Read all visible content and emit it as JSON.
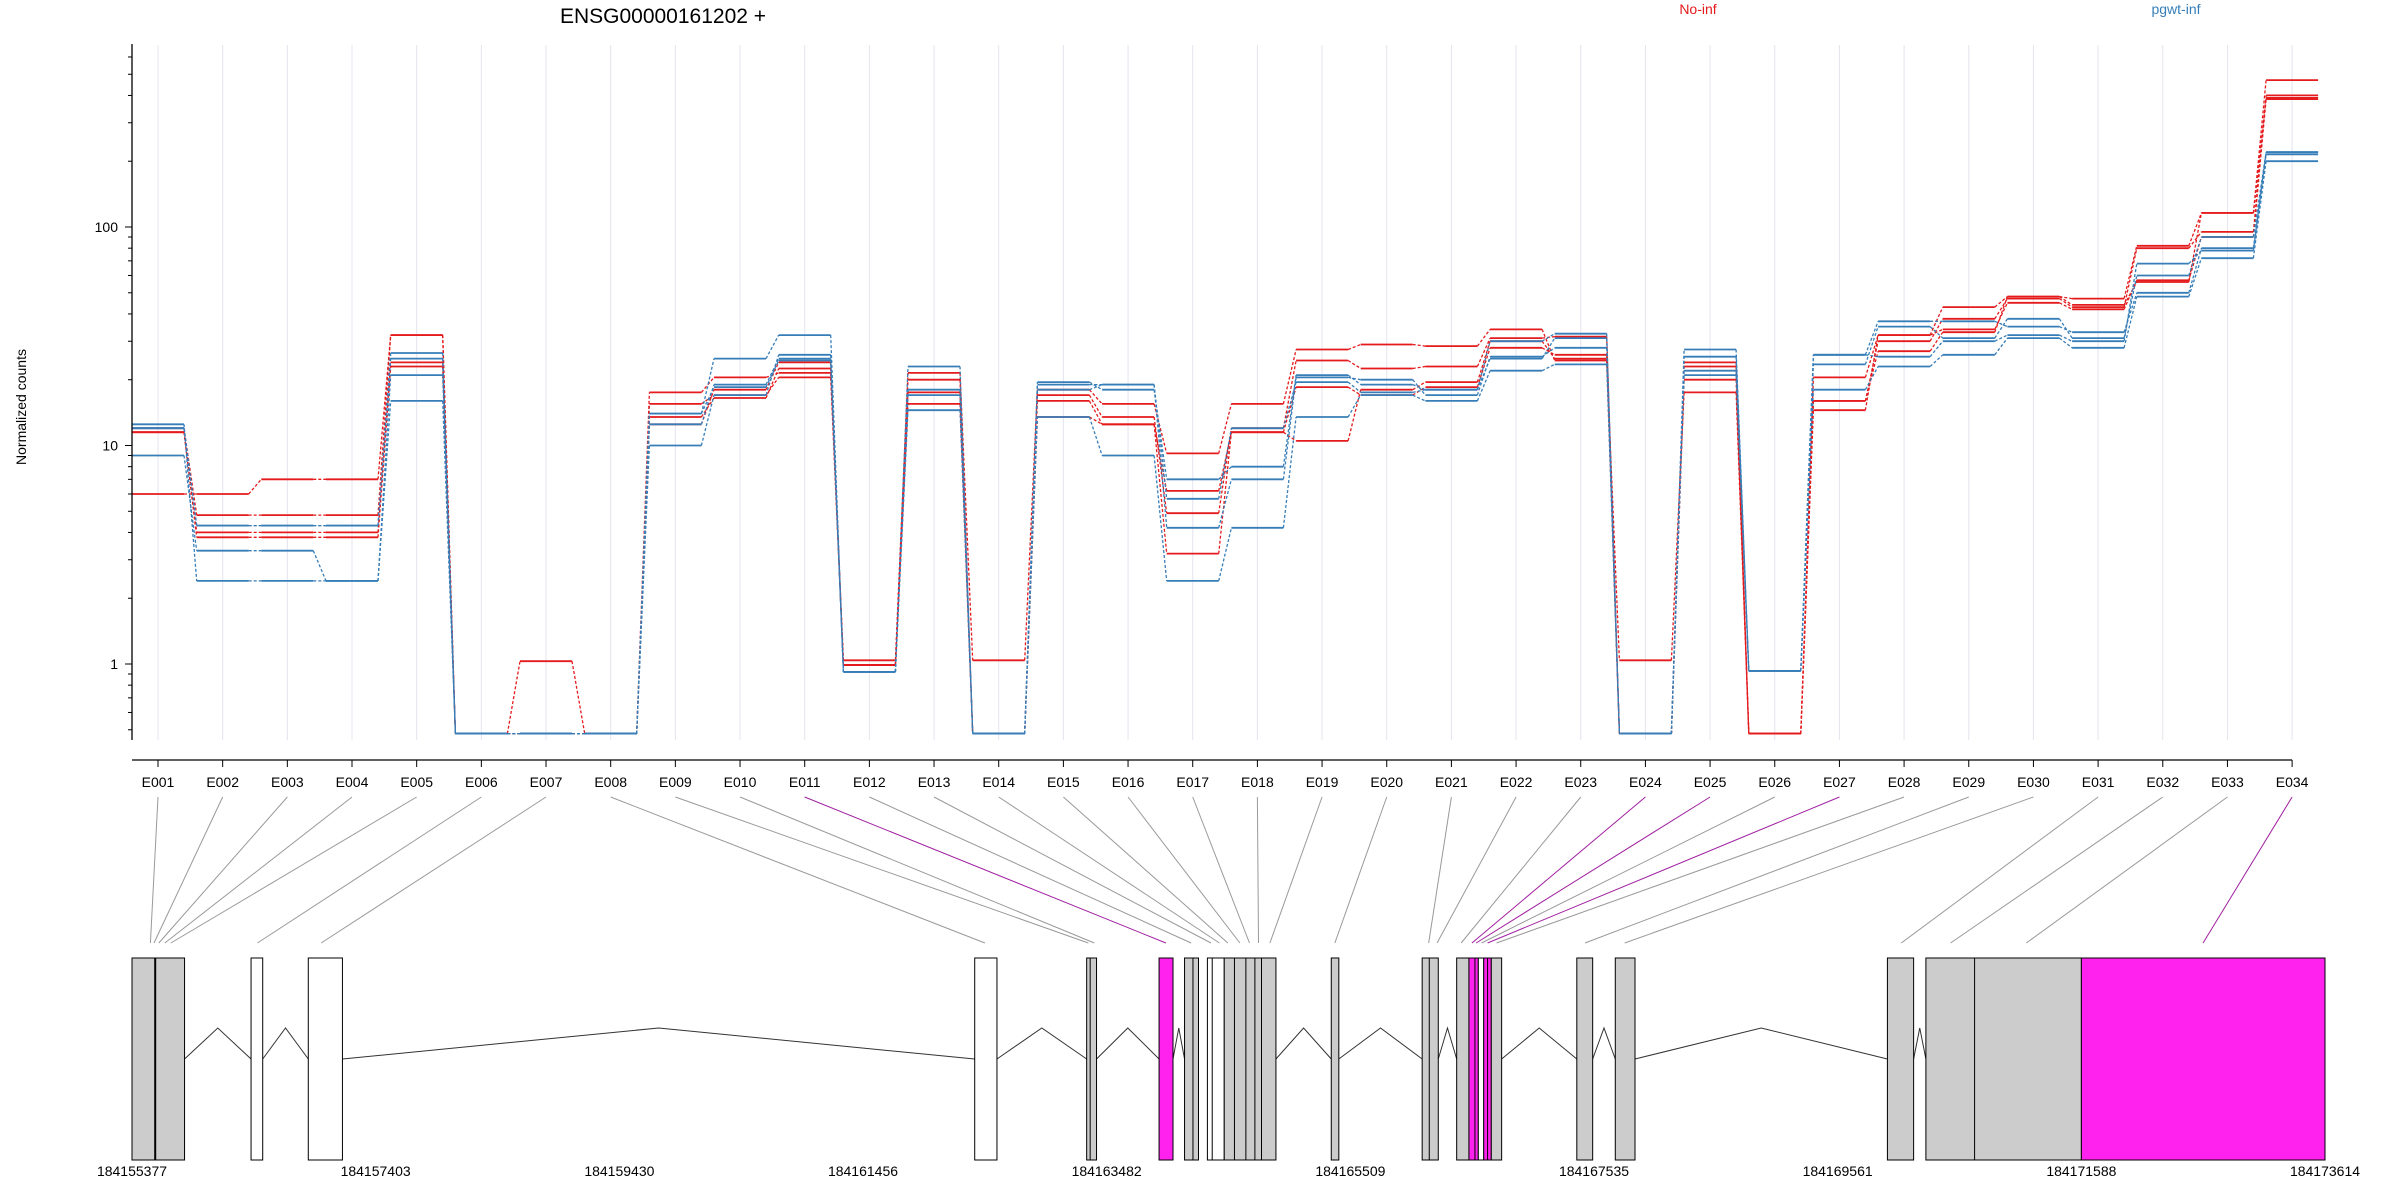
{
  "chart_data": {
    "type": "line",
    "title": "ENSG00000161202 +",
    "ylabel": "Normalized counts",
    "yscale": "log",
    "ylim": [
      0.45,
      600
    ],
    "yticks": [
      {
        "value": 1,
        "label": "1"
      },
      {
        "value": 10,
        "label": "10"
      },
      {
        "value": 100,
        "label": "100"
      }
    ],
    "grid": "vertical",
    "legend_position": "top-right",
    "categories": [
      "E001",
      "E002",
      "E003",
      "E004",
      "E005",
      "E006",
      "E007",
      "E008",
      "E009",
      "E010",
      "E011",
      "E012",
      "E013",
      "E014",
      "E015",
      "E016",
      "E017",
      "E018",
      "E019",
      "E020",
      "E021",
      "E022",
      "E023",
      "E024",
      "E025",
      "E026",
      "E027",
      "E028",
      "E029",
      "E030",
      "E031",
      "E032",
      "E033",
      "E034"
    ],
    "colors": {
      "No-inf": "#e41a1c",
      "pgwt-inf": "#377eb8",
      "gene_model_link_gray": "#999999",
      "gene_model_link_magenta": "#a020a0"
    },
    "series": [
      {
        "name": "No-inf",
        "group": "No-inf",
        "values": [
          6,
          6,
          7,
          7,
          32,
          0.48,
          1.03,
          0.48,
          17.5,
          20.5,
          21.5,
          1.04,
          21.5,
          1.04,
          18,
          15.5,
          9.2,
          15.5,
          27.5,
          29,
          28.5,
          34,
          24.5,
          1.04,
          17.5,
          0.48,
          20.5,
          32,
          43,
          48,
          47,
          82,
          116,
          470
        ]
      },
      {
        "name": "No-inf",
        "group": "No-inf",
        "values": [
          12,
          4.8,
          4.8,
          4.8,
          32,
          0.48,
          0.48,
          0.48,
          15.5,
          17,
          20.5,
          0.99,
          20,
          0.48,
          17,
          13.5,
          4.9,
          12,
          24.5,
          22.5,
          23,
          31,
          31.5,
          0.48,
          20,
          0.48,
          16,
          30,
          38,
          47,
          43,
          80,
          95,
          400
        ]
      },
      {
        "name": "No-inf",
        "group": "No-inf",
        "values": [
          11.5,
          4,
          4,
          4,
          24,
          0.48,
          0.48,
          0.48,
          13.5,
          16.5,
          22.5,
          0.99,
          17.5,
          0.48,
          16,
          12.5,
          6.2,
          11.5,
          18.5,
          17,
          18.5,
          28,
          26,
          0.48,
          23,
          0.48,
          14.5,
          32,
          34,
          45,
          42,
          57,
          90,
          385
        ]
      },
      {
        "name": "No-inf",
        "group": "No-inf",
        "values": [
          11.5,
          3.8,
          3.8,
          3.8,
          23,
          0.48,
          0.48,
          0.48,
          12.5,
          18,
          24,
          0.99,
          15.5,
          0.48,
          13.5,
          12.5,
          3.2,
          11.5,
          10.5,
          18,
          19.5,
          30,
          25,
          0.48,
          24,
          0.48,
          16,
          27,
          33,
          48,
          44,
          56,
          116,
          390
        ]
      },
      {
        "name": "pgwt-inf",
        "group": "pgwt-inf",
        "values": [
          9,
          3.3,
          3.3,
          2.4,
          16,
          0.48,
          0.48,
          0.48,
          10,
          17,
          26,
          0.92,
          14.5,
          0.48,
          13.5,
          9,
          2.4,
          4.2,
          13.5,
          17,
          16,
          22,
          23.5,
          0.48,
          21,
          0.93,
          18,
          23,
          26,
          31,
          28,
          48,
          72,
          200
        ]
      },
      {
        "name": "pgwt-inf",
        "group": "pgwt-inf",
        "values": [
          12.5,
          2.4,
          2.4,
          2.4,
          21,
          0.48,
          0.48,
          0.48,
          14,
          25,
          32,
          0.92,
          23,
          0.48,
          19.5,
          18,
          7,
          8,
          21,
          19,
          18,
          30,
          32.5,
          0.48,
          27.5,
          0.93,
          26,
          37,
          37,
          35,
          33,
          50,
          80,
          215
        ]
      },
      {
        "name": "pgwt-inf",
        "group": "pgwt-inf",
        "values": [
          12,
          4.3,
          4.3,
          4.3,
          26.5,
          0.48,
          0.48,
          0.48,
          12.5,
          19,
          25,
          0.92,
          18,
          0.48,
          18,
          19,
          4.2,
          7,
          20.5,
          20,
          17,
          25.5,
          28,
          0.48,
          25.5,
          0.93,
          23.5,
          35,
          31,
          38,
          31,
          60,
          90,
          220
        ]
      },
      {
        "name": "pgwt-inf",
        "group": "pgwt-inf",
        "values": [
          12,
          4.3,
          4.3,
          4.3,
          25,
          0.48,
          0.48,
          0.48,
          14,
          18.5,
          24.5,
          0.92,
          17,
          0.48,
          19,
          19,
          5.7,
          12,
          19.5,
          17.5,
          18,
          25,
          31,
          0.48,
          22,
          0.93,
          26,
          25.5,
          30,
          32,
          30,
          68,
          78,
          220
        ]
      }
    ],
    "gene_model": {
      "xlim": [
        184155377,
        184173614
      ],
      "xticks": [
        "184155377",
        "184157403",
        "184159430",
        "184161456",
        "184163482",
        "184165509",
        "184167535",
        "184169561",
        "184171588",
        "184173614"
      ],
      "exons": [
        {
          "start": 184155377,
          "end": 184155814,
          "fill": "#cccccc"
        },
        {
          "start": 184156367,
          "end": 184156464,
          "fill": "#ffffff"
        },
        {
          "start": 184156843,
          "end": 184157127,
          "fill": "#ffffff"
        },
        {
          "start": 184162385,
          "end": 184162570,
          "fill": "#ffffff"
        },
        {
          "start": 184163316,
          "end": 184163398,
          "fill": "#cccccc"
        },
        {
          "start": 184163918,
          "end": 184164034,
          "fill": "#ff22ee"
        },
        {
          "start": 184164130,
          "end": 184164246,
          "fill": "#cccccc"
        },
        {
          "start": 184164320,
          "end": 184164460,
          "fill": "#ffffff"
        },
        {
          "start": 184164460,
          "end": 184164890,
          "fill": "#cccccc"
        },
        {
          "start": 184165350,
          "end": 184165413,
          "fill": "#cccccc"
        },
        {
          "start": 184166106,
          "end": 184166240,
          "fill": "#cccccc"
        },
        {
          "start": 184166393,
          "end": 184166495,
          "fill": "#cccccc"
        },
        {
          "start": 184166495,
          "end": 184166573,
          "fill": "#ff22ee"
        },
        {
          "start": 184166573,
          "end": 184166618,
          "fill": "#ffffff"
        },
        {
          "start": 184166618,
          "end": 184166681,
          "fill": "#ff22ee"
        },
        {
          "start": 184166681,
          "end": 184166767,
          "fill": "#cccccc"
        },
        {
          "start": 184167392,
          "end": 184167524,
          "fill": "#cccccc"
        },
        {
          "start": 184167712,
          "end": 184167876,
          "fill": "#cccccc"
        },
        {
          "start": 184169975,
          "end": 184170193,
          "fill": "#cccccc"
        },
        {
          "start": 184170295,
          "end": 184171588,
          "fill": "#cccccc"
        },
        {
          "start": 184171588,
          "end": 184173614,
          "fill": "#ff22ee"
        }
      ],
      "internal_boundaries": [
        184155570,
        184163345,
        184164200,
        184164360,
        184164545,
        184164640,
        184164715,
        184164770,
        184166165,
        184166545,
        184166650,
        184170700
      ],
      "introns": [
        [
          184155814,
          184156367
        ],
        [
          184156464,
          184156843
        ],
        [
          184157127,
          184162385
        ],
        [
          184162570,
          184163316
        ],
        [
          184163398,
          184163918
        ],
        [
          184164034,
          184164130
        ],
        [
          184164890,
          184165350
        ],
        [
          184165413,
          184166106
        ],
        [
          184166240,
          184166393
        ],
        [
          184166767,
          184167392
        ],
        [
          184167524,
          184167712
        ],
        [
          184167876,
          184169975
        ],
        [
          184170193,
          184170295
        ]
      ],
      "exon_links": [
        {
          "exon": "E001",
          "genomic": 184155530,
          "color": "gray"
        },
        {
          "exon": "E002",
          "genomic": 184155560,
          "color": "gray"
        },
        {
          "exon": "E003",
          "genomic": 184155600,
          "color": "gray"
        },
        {
          "exon": "E004",
          "genomic": 184155650,
          "color": "gray"
        },
        {
          "exon": "E005",
          "genomic": 184155700,
          "color": "gray"
        },
        {
          "exon": "E006",
          "genomic": 184156420,
          "color": "gray"
        },
        {
          "exon": "E007",
          "genomic": 184156950,
          "color": "gray"
        },
        {
          "exon": "E008",
          "genomic": 184162470,
          "color": "gray"
        },
        {
          "exon": "E009",
          "genomic": 184163330,
          "color": "gray"
        },
        {
          "exon": "E010",
          "genomic": 184163380,
          "color": "gray"
        },
        {
          "exon": "E011",
          "genomic": 184163975,
          "color": "magenta"
        },
        {
          "exon": "E012",
          "genomic": 184164185,
          "color": "gray"
        },
        {
          "exon": "E013",
          "genomic": 184164350,
          "color": "gray"
        },
        {
          "exon": "E014",
          "genomic": 184164420,
          "color": "gray"
        },
        {
          "exon": "E015",
          "genomic": 184164490,
          "color": "gray"
        },
        {
          "exon": "E016",
          "genomic": 184164590,
          "color": "gray"
        },
        {
          "exon": "E017",
          "genomic": 184164670,
          "color": "gray"
        },
        {
          "exon": "E018",
          "genomic": 184164745,
          "color": "gray"
        },
        {
          "exon": "E019",
          "genomic": 184164840,
          "color": "gray"
        },
        {
          "exon": "E020",
          "genomic": 184165380,
          "color": "gray"
        },
        {
          "exon": "E021",
          "genomic": 184166160,
          "color": "gray"
        },
        {
          "exon": "E022",
          "genomic": 184166230,
          "color": "gray"
        },
        {
          "exon": "E023",
          "genomic": 184166430,
          "color": "gray"
        },
        {
          "exon": "E024",
          "genomic": 184166520,
          "color": "magenta"
        },
        {
          "exon": "E025",
          "genomic": 184166555,
          "color": "magenta"
        },
        {
          "exon": "E026",
          "genomic": 184166600,
          "color": "gray"
        },
        {
          "exon": "E027",
          "genomic": 184166650,
          "color": "magenta"
        },
        {
          "exon": "E028",
          "genomic": 184166725,
          "color": "gray"
        },
        {
          "exon": "E029",
          "genomic": 184167460,
          "color": "gray"
        },
        {
          "exon": "E030",
          "genomic": 184167790,
          "color": "gray"
        },
        {
          "exon": "E031",
          "genomic": 184170090,
          "color": "gray"
        },
        {
          "exon": "E032",
          "genomic": 184170500,
          "color": "gray"
        },
        {
          "exon": "E033",
          "genomic": 184171130,
          "color": "gray"
        },
        {
          "exon": "E034",
          "genomic": 184172600,
          "color": "magenta"
        }
      ]
    }
  }
}
